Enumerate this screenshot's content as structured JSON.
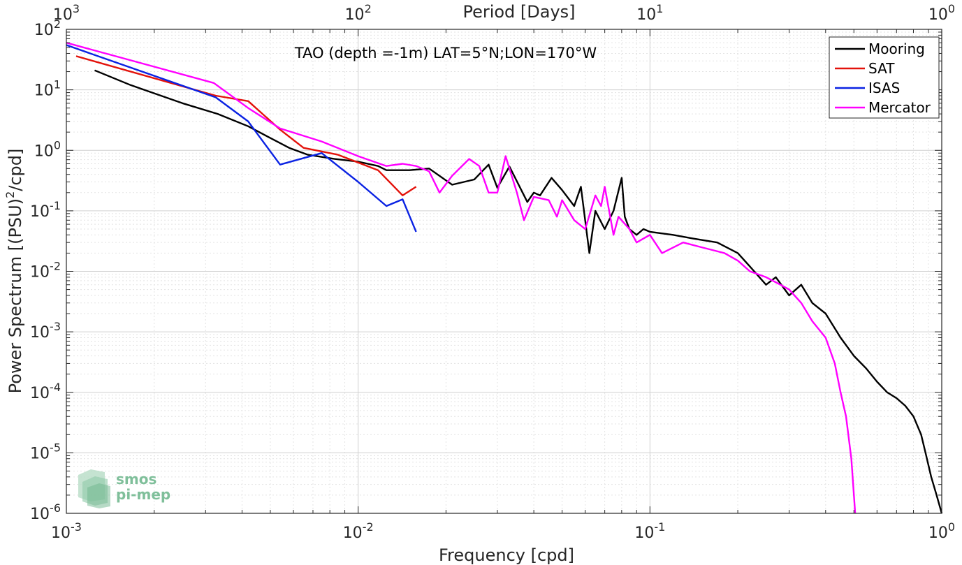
{
  "chart_data": {
    "type": "line",
    "title": "TAO (depth =-1m) LAT=5°N;LON=170°W",
    "xlabel": "Frequency [cpd]",
    "ylabel": "Power Spectrum [(PSU)",
    "ylabel_sup": "2",
    "ylabel_tail": "/cpd]",
    "x2label": "Period [Days]",
    "xscale": "log",
    "yscale": "log",
    "xlim": [
      0.001,
      1
    ],
    "ylim": [
      1e-06,
      100
    ],
    "grid": true,
    "legend_position": "top-right",
    "xticks": [
      {
        "base": "10",
        "exp": "-3"
      },
      {
        "base": "10",
        "exp": "-2"
      },
      {
        "base": "10",
        "exp": "-1"
      },
      {
        "base": "10",
        "exp": "0"
      }
    ],
    "yticks": [
      {
        "base": "10",
        "exp": "2"
      },
      {
        "base": "10",
        "exp": "1"
      },
      {
        "base": "10",
        "exp": "0"
      },
      {
        "base": "10",
        "exp": "-1"
      },
      {
        "base": "10",
        "exp": "-2"
      },
      {
        "base": "10",
        "exp": "-3"
      },
      {
        "base": "10",
        "exp": "-4"
      },
      {
        "base": "10",
        "exp": "-5"
      },
      {
        "base": "10",
        "exp": "-6"
      }
    ],
    "x2ticks": [
      {
        "base": "10",
        "exp": "3"
      },
      {
        "base": "10",
        "exp": "2"
      },
      {
        "base": "10",
        "exp": "1"
      },
      {
        "base": "10",
        "exp": "0"
      }
    ],
    "series": [
      {
        "name": "Mooring",
        "color": "#000000",
        "points": [
          [
            0.00125,
            21
          ],
          [
            0.00166,
            12
          ],
          [
            0.0025,
            6
          ],
          [
            0.0033,
            4
          ],
          [
            0.0042,
            2.5
          ],
          [
            0.005,
            1.6
          ],
          [
            0.0058,
            1.1
          ],
          [
            0.0067,
            0.85
          ],
          [
            0.0083,
            0.72
          ],
          [
            0.01,
            0.65
          ],
          [
            0.0117,
            0.55
          ],
          [
            0.0125,
            0.47
          ],
          [
            0.015,
            0.47
          ],
          [
            0.0175,
            0.5
          ],
          [
            0.021,
            0.27
          ],
          [
            0.025,
            0.33
          ],
          [
            0.028,
            0.58
          ],
          [
            0.03,
            0.24
          ],
          [
            0.033,
            0.54
          ],
          [
            0.038,
            0.14
          ],
          [
            0.04,
            0.2
          ],
          [
            0.042,
            0.18
          ],
          [
            0.046,
            0.35
          ],
          [
            0.05,
            0.22
          ],
          [
            0.055,
            0.12
          ],
          [
            0.058,
            0.25
          ],
          [
            0.062,
            0.02
          ],
          [
            0.065,
            0.1
          ],
          [
            0.07,
            0.05
          ],
          [
            0.075,
            0.1
          ],
          [
            0.08,
            0.35
          ],
          [
            0.082,
            0.08
          ],
          [
            0.085,
            0.05
          ],
          [
            0.09,
            0.04
          ],
          [
            0.095,
            0.05
          ],
          [
            0.1,
            0.045
          ],
          [
            0.12,
            0.04
          ],
          [
            0.14,
            0.035
          ],
          [
            0.17,
            0.03
          ],
          [
            0.2,
            0.02
          ],
          [
            0.22,
            0.012
          ],
          [
            0.25,
            0.006
          ],
          [
            0.27,
            0.008
          ],
          [
            0.3,
            0.004
          ],
          [
            0.33,
            0.006
          ],
          [
            0.36,
            0.003
          ],
          [
            0.4,
            0.002
          ],
          [
            0.45,
            0.0008
          ],
          [
            0.5,
            0.0004
          ],
          [
            0.55,
            0.00025
          ],
          [
            0.6,
            0.00015
          ],
          [
            0.65,
            0.0001
          ],
          [
            0.7,
            8e-05
          ],
          [
            0.75,
            6e-05
          ],
          [
            0.8,
            4e-05
          ],
          [
            0.85,
            2e-05
          ],
          [
            0.88,
            1e-05
          ],
          [
            0.92,
            4e-06
          ],
          [
            0.96,
            2e-06
          ],
          [
            1.0,
            1e-06
          ]
        ]
      },
      {
        "name": "SAT",
        "color": "#e3120b",
        "points": [
          [
            0.00108,
            36
          ],
          [
            0.00325,
            8
          ],
          [
            0.0042,
            6.5
          ],
          [
            0.0054,
            2.2
          ],
          [
            0.0065,
            1.1
          ],
          [
            0.0085,
            0.85
          ],
          [
            0.0117,
            0.47
          ],
          [
            0.0142,
            0.18
          ],
          [
            0.0158,
            0.25
          ]
        ]
      },
      {
        "name": "ISAS",
        "color": "#0a22e3",
        "points": [
          [
            0.001,
            55
          ],
          [
            0.00325,
            7.5
          ],
          [
            0.0042,
            3
          ],
          [
            0.0054,
            0.58
          ],
          [
            0.0075,
            0.9
          ],
          [
            0.01,
            0.3
          ],
          [
            0.0125,
            0.12
          ],
          [
            0.0142,
            0.155
          ],
          [
            0.0158,
            0.045
          ]
        ]
      },
      {
        "name": "Mercator",
        "color": "#ff00ff",
        "points": [
          [
            0.001,
            60
          ],
          [
            0.0032,
            13
          ],
          [
            0.0042,
            5
          ],
          [
            0.0054,
            2.3
          ],
          [
            0.0075,
            1.4
          ],
          [
            0.01,
            0.8
          ],
          [
            0.0125,
            0.55
          ],
          [
            0.0142,
            0.6
          ],
          [
            0.0158,
            0.55
          ],
          [
            0.0175,
            0.45
          ],
          [
            0.019,
            0.2
          ],
          [
            0.021,
            0.38
          ],
          [
            0.024,
            0.72
          ],
          [
            0.026,
            0.55
          ],
          [
            0.028,
            0.2
          ],
          [
            0.03,
            0.2
          ],
          [
            0.032,
            0.8
          ],
          [
            0.035,
            0.2
          ],
          [
            0.037,
            0.07
          ],
          [
            0.04,
            0.17
          ],
          [
            0.045,
            0.15
          ],
          [
            0.048,
            0.08
          ],
          [
            0.05,
            0.15
          ],
          [
            0.055,
            0.07
          ],
          [
            0.06,
            0.05
          ],
          [
            0.065,
            0.18
          ],
          [
            0.068,
            0.12
          ],
          [
            0.07,
            0.25
          ],
          [
            0.075,
            0.04
          ],
          [
            0.078,
            0.08
          ],
          [
            0.085,
            0.05
          ],
          [
            0.09,
            0.03
          ],
          [
            0.1,
            0.04
          ],
          [
            0.11,
            0.02
          ],
          [
            0.13,
            0.03
          ],
          [
            0.15,
            0.025
          ],
          [
            0.18,
            0.02
          ],
          [
            0.2,
            0.015
          ],
          [
            0.22,
            0.01
          ],
          [
            0.25,
            0.008
          ],
          [
            0.28,
            0.006
          ],
          [
            0.3,
            0.005
          ],
          [
            0.33,
            0.003
          ],
          [
            0.36,
            0.0015
          ],
          [
            0.4,
            0.0008
          ],
          [
            0.43,
            0.0003
          ],
          [
            0.45,
            0.0001
          ],
          [
            0.47,
            4e-05
          ],
          [
            0.49,
            8e-06
          ],
          [
            0.505,
            1e-06
          ]
        ]
      }
    ]
  },
  "watermark": {
    "line1": "smos",
    "line2": "pi-mep"
  }
}
